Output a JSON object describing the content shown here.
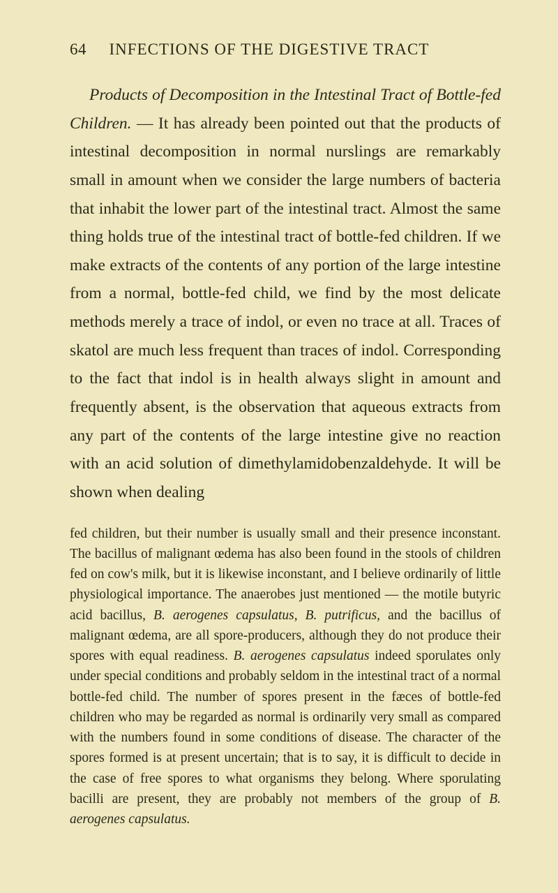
{
  "page": {
    "number": "64",
    "running_title": "INFECTIONS OF THE DIGESTIVE TRACT"
  },
  "main_paragraph": {
    "lead_italic": "Products of Decomposition in the Intestinal Tract of Bottle-fed Children.",
    "body": " — It has already been pointed out that the products of intestinal decomposition in normal nurslings are remarkably small in amount when we consider the large numbers of bacteria that inhabit the lower part of the intestinal tract. Almost the same thing holds true of the intestinal tract of bottle-fed children. If we make extracts of the contents of any portion of the large intestine from a normal, bottle-fed child, we find by the most delicate methods merely a trace of indol, or even no trace at all. Traces of skatol are much less frequent than traces of indol. Corresponding to the fact that indol is in health always slight in amount and frequently absent, is the observation that aqueous extracts from any part of the contents of the large intestine give no reaction with an acid solution of dimethylamidobenzaldehyde. It will be shown when dealing"
  },
  "footnote": {
    "part1": "fed children, but their number is usually small and their presence inconstant. The bacillus of malignant œdema has also been found in the stools of children fed on cow's milk, but it is likewise inconstant, and I believe ordinarily of little physiological importance. The anaerobes just mentioned — the motile butyric acid bacillus, ",
    "italic1": "B. aerogenes capsulatus, B. putrificus,",
    "part2": " and the bacillus of malignant œdema, are all spore-producers, although they do not produce their spores with equal readiness. ",
    "italic2": "B. aerogenes capsulatus",
    "part3": " indeed sporulates only under special conditions and probably seldom in the intestinal tract of a normal bottle-fed child. The number of spores present in the fæces of bottle-fed children who may be regarded as normal is ordinarily very small as compared with the numbers found in some conditions of disease. The character of the spores formed is at present uncertain; that is to say, it is difficult to decide in the case of free spores to what organisms they belong. Where sporulating bacilli are present, they are probably not members of the group of ",
    "italic3": "B. aerogenes capsulatus."
  }
}
